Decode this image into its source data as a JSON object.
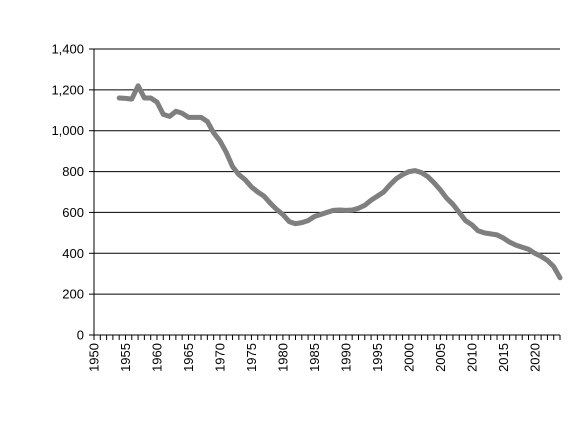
{
  "chart_data": {
    "type": "line",
    "title": "",
    "xlabel": "",
    "ylabel": "",
    "xlim": [
      1950,
      2024
    ],
    "ylim": [
      0,
      1400
    ],
    "y_ticks": [
      0,
      200,
      400,
      600,
      800,
      1000,
      1200,
      1400
    ],
    "y_tick_labels": [
      "0",
      "200",
      "400",
      "600",
      "800",
      "1,000",
      "1,200",
      "1,400"
    ],
    "x_ticks": [
      1950,
      1955,
      1960,
      1965,
      1970,
      1975,
      1980,
      1985,
      1990,
      1995,
      2000,
      2005,
      2010,
      2015,
      2020
    ],
    "x_tick_labels": [
      "1950",
      "1955",
      "1960",
      "1965",
      "1970",
      "1975",
      "1980",
      "1985",
      "1990",
      "1995",
      "2000",
      "2005",
      "2010",
      "2015",
      "2020"
    ],
    "grid": true,
    "legend": "none",
    "line_color": "#7f7f7f",
    "series": [
      {
        "x": [
          1954,
          1955,
          1956,
          1957,
          1958,
          1959,
          1960,
          1961,
          1962,
          1963,
          1964,
          1965,
          1966,
          1967,
          1968,
          1969,
          1970,
          1971,
          1972,
          1973,
          1974,
          1975,
          1976,
          1977,
          1978,
          1979,
          1980,
          1981,
          1982,
          1983,
          1984,
          1985,
          1986,
          1987,
          1988,
          1989,
          1990,
          1991,
          1992,
          1993,
          1994,
          1995,
          1996,
          1997,
          1998,
          1999,
          2000,
          2001,
          2002,
          2003,
          2004,
          2005,
          2006,
          2007,
          2008,
          2009,
          2010,
          2011,
          2012,
          2013,
          2014,
          2015,
          2016,
          2017,
          2018,
          2019,
          2020,
          2021,
          2022,
          2023,
          2024
        ],
        "values": [
          1160,
          1158,
          1155,
          1220,
          1160,
          1160,
          1140,
          1080,
          1070,
          1095,
          1085,
          1065,
          1065,
          1065,
          1045,
          990,
          950,
          895,
          825,
          785,
          760,
          725,
          700,
          680,
          645,
          615,
          590,
          555,
          545,
          550,
          560,
          580,
          590,
          600,
          610,
          612,
          610,
          612,
          620,
          635,
          660,
          680,
          700,
          735,
          765,
          785,
          800,
          805,
          795,
          775,
          745,
          710,
          670,
          640,
          600,
          560,
          540,
          510,
          500,
          495,
          490,
          475,
          455,
          440,
          430,
          420,
          400,
          385,
          365,
          335,
          280
        ]
      }
    ]
  }
}
